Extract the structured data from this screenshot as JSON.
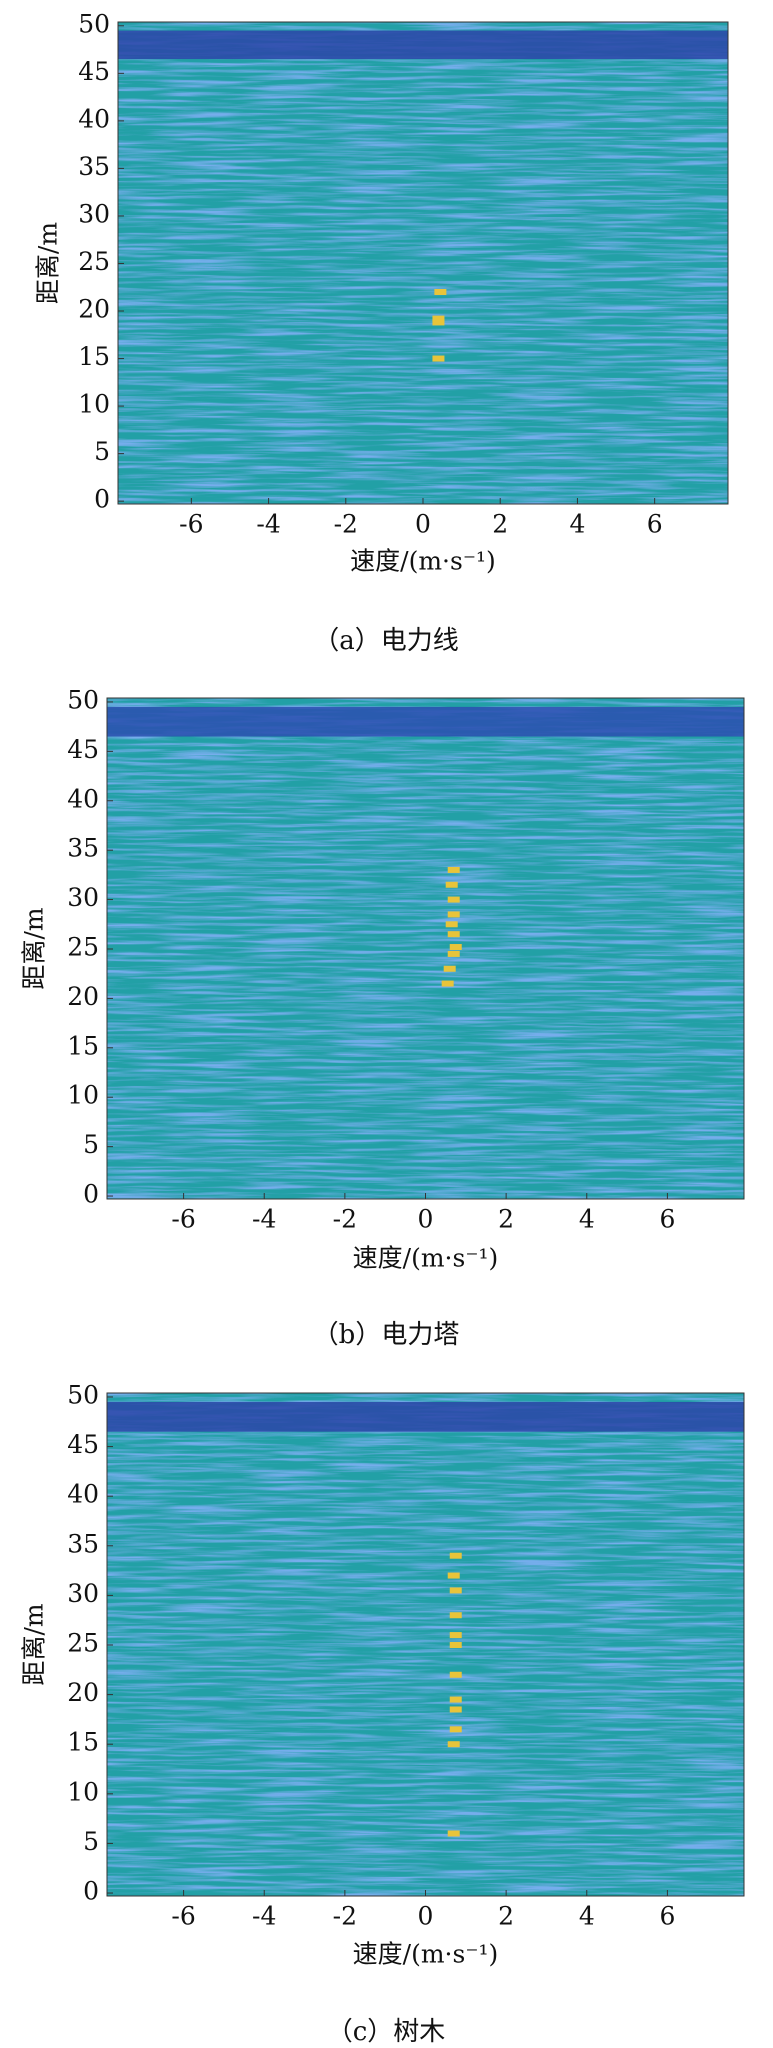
{
  "chart_data": [
    {
      "type": "heatmap",
      "caption": "（a）电力线",
      "x_label": "速度/(m·s⁻¹)",
      "y_label": "距离/m",
      "xlim": [
        -7.9,
        7.9
      ],
      "ylim": [
        -0.3,
        50.4
      ],
      "xticks": [
        -6,
        -4,
        -2,
        0,
        2,
        4,
        6
      ],
      "yticks": [
        0,
        5,
        10,
        15,
        20,
        25,
        30,
        35,
        40,
        45,
        50
      ],
      "background_color": "#22a0a6",
      "noise_color": "#2f6ad6",
      "band_color": "#2b45a8",
      "dark_band": [
        46.5,
        49.5
      ],
      "target_color": "#e8c43a",
      "targets": {
        "x": [
          0.4,
          0.4,
          0.4,
          0.45
        ],
        "y": [
          15,
          18.8,
          19.2,
          22
        ]
      }
    },
    {
      "type": "heatmap",
      "caption": "（b）电力塔",
      "x_label": "速度/(m·s⁻¹)",
      "y_label": "距离/m",
      "xlim": [
        -7.9,
        7.9
      ],
      "ylim": [
        -0.3,
        50.4
      ],
      "xticks": [
        -6,
        -4,
        -2,
        0,
        2,
        4,
        6
      ],
      "yticks": [
        0,
        5,
        10,
        15,
        20,
        25,
        30,
        35,
        40,
        45,
        50
      ],
      "background_color": "#22a0a6",
      "noise_color": "#2f6ad6",
      "band_color": "#2b4fb0",
      "dark_band": [
        46.5,
        49.5
      ],
      "target_color": "#e8c43a",
      "targets": {
        "x": [
          0.55,
          0.6,
          0.7,
          0.75,
          0.7,
          0.65,
          0.7,
          0.7,
          0.65,
          0.7
        ],
        "y": [
          21.5,
          23,
          24.5,
          25.2,
          26.5,
          27.5,
          28.5,
          30,
          31.5,
          33
        ]
      }
    },
    {
      "type": "heatmap",
      "caption": "（c）树木",
      "x_label": "速度/(m·s⁻¹)",
      "y_label": "距离/m",
      "xlim": [
        -7.9,
        7.9
      ],
      "ylim": [
        -0.3,
        50.4
      ],
      "xticks": [
        -6,
        -4,
        -2,
        0,
        2,
        4,
        6
      ],
      "yticks": [
        0,
        5,
        10,
        15,
        20,
        25,
        30,
        35,
        40,
        45,
        50
      ],
      "background_color": "#22a0a6",
      "noise_color": "#2f6ad6",
      "band_color": "#2b45a8",
      "dark_band": [
        46.5,
        49.5
      ],
      "target_color": "#e8c43a",
      "targets": {
        "x": [
          0.7,
          0.7,
          0.75,
          0.75,
          0.75,
          0.75,
          0.75,
          0.75,
          0.75,
          0.75,
          0.7,
          0.75
        ],
        "y": [
          6,
          15,
          16.5,
          18.5,
          19.5,
          22,
          25,
          26,
          28,
          30.5,
          32,
          34
        ]
      }
    }
  ]
}
